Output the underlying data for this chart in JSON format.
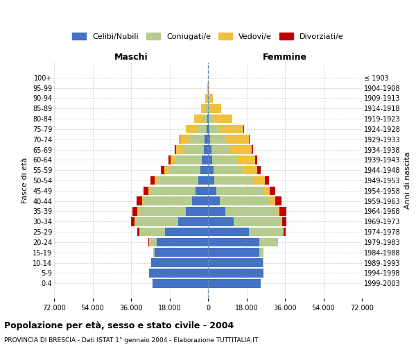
{
  "age_groups": [
    "0-4",
    "5-9",
    "10-14",
    "15-19",
    "20-24",
    "25-29",
    "30-34",
    "35-39",
    "40-44",
    "45-49",
    "50-54",
    "55-59",
    "60-64",
    "65-69",
    "70-74",
    "75-79",
    "80-84",
    "85-89",
    "90-94",
    "95-99",
    "100+"
  ],
  "birth_years": [
    "1999-2003",
    "1994-1998",
    "1989-1993",
    "1984-1988",
    "1979-1983",
    "1974-1978",
    "1969-1973",
    "1964-1968",
    "1959-1963",
    "1954-1958",
    "1949-1953",
    "1944-1948",
    "1939-1943",
    "1934-1938",
    "1929-1933",
    "1924-1928",
    "1919-1923",
    "1914-1918",
    "1909-1913",
    "1904-1908",
    "≤ 1903"
  ],
  "males": {
    "celibe": [
      26000,
      27500,
      26500,
      25000,
      24000,
      20000,
      14000,
      10500,
      7500,
      5800,
      4500,
      3500,
      2800,
      2000,
      1500,
      800,
      350,
      130,
      40,
      10,
      2
    ],
    "coniugato": [
      50,
      100,
      200,
      600,
      3500,
      12000,
      20000,
      22000,
      22500,
      21000,
      19000,
      15000,
      12000,
      9500,
      7000,
      4500,
      2000,
      700,
      180,
      40,
      5
    ],
    "vedovo": [
      0,
      0,
      0,
      0,
      30,
      100,
      250,
      500,
      800,
      1100,
      1500,
      2000,
      2800,
      3500,
      4500,
      5000,
      4000,
      2500,
      1000,
      300,
      60
    ],
    "divorziato": [
      0,
      0,
      0,
      50,
      300,
      900,
      1800,
      2500,
      2500,
      2200,
      1800,
      1400,
      900,
      450,
      180,
      60,
      20,
      5,
      2,
      0,
      0
    ]
  },
  "females": {
    "nubile": [
      24500,
      26000,
      25500,
      24000,
      24000,
      19000,
      12000,
      8000,
      5500,
      4000,
      3000,
      2500,
      2000,
      1500,
      1100,
      700,
      300,
      100,
      30,
      8,
      1
    ],
    "coniugata": [
      50,
      100,
      300,
      2000,
      8500,
      16000,
      22000,
      24000,
      23500,
      21500,
      18500,
      14000,
      11500,
      9000,
      7000,
      4500,
      2000,
      600,
      150,
      30,
      3
    ],
    "vedova": [
      0,
      0,
      0,
      20,
      100,
      350,
      800,
      1500,
      2500,
      3500,
      5000,
      6500,
      8500,
      10000,
      11000,
      11500,
      9000,
      5500,
      2200,
      700,
      120
    ],
    "divorziata": [
      0,
      0,
      0,
      30,
      300,
      1000,
      2000,
      3000,
      2800,
      2500,
      2200,
      1700,
      1100,
      500,
      200,
      70,
      20,
      5,
      1,
      0,
      0
    ]
  },
  "colors": {
    "celibe": "#4472C4",
    "coniugato": "#B5CC8E",
    "vedovo": "#F0C040",
    "divorziato": "#C00000"
  },
  "legend_labels": [
    "Celibi/Nubili",
    "Coniugati/e",
    "Vedovi/e",
    "Divorziati/e"
  ],
  "title": "Popolazione per età, sesso e stato civile - 2004",
  "subtitle": "PROVINCIA DI BRESCIA - Dati ISTAT 1° gennaio 2004 - Elaborazione TUTTITALIA.IT",
  "ylabel": "Fasce di età",
  "ylabel_right": "Anni di nascita",
  "xlabel_left": "Maschi",
  "xlabel_right": "Femmine",
  "xticks": [
    -72000,
    -54000,
    -36000,
    -18000,
    0,
    18000,
    36000,
    54000,
    72000
  ],
  "xtick_labels": [
    "72.000",
    "54.000",
    "36.000",
    "18.000",
    "0",
    "18.000",
    "36.000",
    "54.000",
    "72.000"
  ],
  "xlim": [
    -72000,
    72000
  ],
  "background_color": "#FFFFFF",
  "grid_color": "#CCCCCC"
}
